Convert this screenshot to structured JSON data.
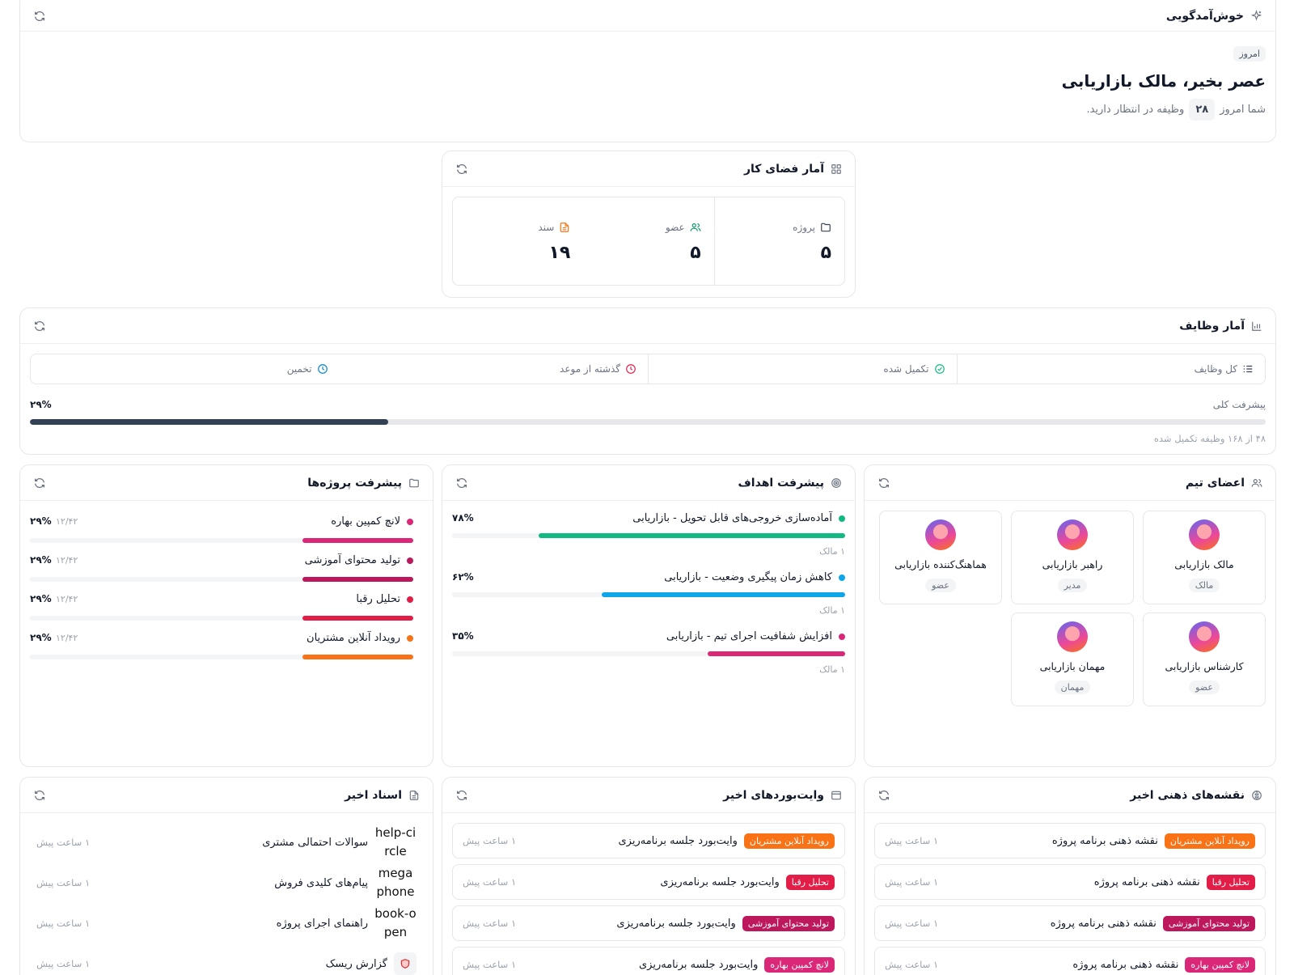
{
  "welcome": {
    "title": "خوش‌آمدگویی",
    "today": "امروز",
    "greeting": "عصر بخیر، مالک بازاریابی",
    "sub_prefix": "شما امروز",
    "task_count": "۲۸",
    "sub_suffix": "وظیفه در انتظار دارید."
  },
  "workspace": {
    "title": "آمار فضای کار",
    "project_label": "پروژه",
    "project_value": "۵",
    "member_label": "عضو",
    "member_value": "۵",
    "doc_label": "سند",
    "doc_value": "۱۹"
  },
  "tasks": {
    "title": "آمار وظایف",
    "total_label": "کل وظایف",
    "completed_label": "تکمیل شده",
    "overdue_label": "گذشته از موعد",
    "estimate_label": "تخمین",
    "progress_label": "پیشرفت کلی",
    "progress_pct_text": "۲۹%",
    "progress_value": 0.29,
    "progress_caption": "۴۸ از ۱۶۸ وظیفه تکمیل شده"
  },
  "projects": {
    "title": "پیشرفت پروژه‌ها",
    "items": [
      {
        "name": "لانچ کمپین بهاره",
        "date": "۱۲/۴۲",
        "pct": "۲۹%",
        "value": 0.29,
        "color": "#db2777"
      },
      {
        "name": "تولید محتوای آموزشی",
        "date": "۱۲/۴۲",
        "pct": "۲۹%",
        "value": 0.29,
        "color": "#be185d"
      },
      {
        "name": "تحلیل رقبا",
        "date": "۱۲/۴۲",
        "pct": "۲۹%",
        "value": 0.29,
        "color": "#e11d48"
      },
      {
        "name": "رویداد آنلاین مشتریان",
        "date": "۱۲/۴۲",
        "pct": "۲۹%",
        "value": 0.29,
        "color": "#f97316"
      }
    ]
  },
  "goals": {
    "title": "پیشرفت اهداف",
    "items": [
      {
        "name": "آماده‌سازی خروجی‌های قابل تحویل - بازاریابی",
        "pct": "۷۸%",
        "value": 0.78,
        "color": "#10b981",
        "owner": "۱ مالک"
      },
      {
        "name": "کاهش زمان پیگیری وضعیت - بازاریابی",
        "pct": "۶۲%",
        "value": 0.62,
        "color": "#0ea5e9",
        "owner": "۱ مالک"
      },
      {
        "name": "افزایش شفافیت اجرای تیم - بازاریابی",
        "pct": "۳۵%",
        "value": 0.35,
        "color": "#db2777",
        "owner": "۱ مالک"
      }
    ]
  },
  "team": {
    "title": "اعضای تیم",
    "members": [
      {
        "name": "مالک بازاریابی",
        "role": "مالک"
      },
      {
        "name": "راهبر بازاریابی",
        "role": "مدیر"
      },
      {
        "name": "هماهنگ‌کننده بازاریابی",
        "role": "عضو"
      },
      {
        "name": "کارشناس بازاریابی",
        "role": "عضو"
      },
      {
        "name": "مهمان بازاریابی",
        "role": "مهمان"
      }
    ]
  },
  "documents": {
    "title": "اسناد اخیر",
    "items": [
      {
        "icon": "help-circle",
        "title": "سوالات احتمالی مشتری",
        "time": "۱ ساعت پیش"
      },
      {
        "icon": "megaphone",
        "title": "پیام‌های کلیدی فروش",
        "time": "۱ ساعت پیش"
      },
      {
        "icon": "book-open",
        "title": "راهنمای اجرای پروژه",
        "time": "۱ ساعت پیش"
      },
      {
        "icon": "shield-icon",
        "title": "گزارش ریسک",
        "time": "۱ ساعت پیش"
      }
    ]
  },
  "whiteboards": {
    "title": "وایت‌بوردهای اخیر",
    "items": [
      {
        "tag": "رویداد آنلاین مشتریان",
        "tag_color": "#f97316",
        "title": "وایت‌بورد جلسه برنامه‌ریزی",
        "time": "۱ ساعت پیش"
      },
      {
        "tag": "تحلیل رقبا",
        "tag_color": "#e11d48",
        "title": "وایت‌بورد جلسه برنامه‌ریزی",
        "time": "۱ ساعت پیش"
      },
      {
        "tag": "تولید محتوای آموزشی",
        "tag_color": "#be185d",
        "title": "وایت‌بورد جلسه برنامه‌ریزی",
        "time": "۱ ساعت پیش"
      },
      {
        "tag": "لانچ کمپین بهاره",
        "tag_color": "#db2777",
        "title": "وایت‌بورد جلسه برنامه‌ریزی",
        "time": "۱ ساعت پیش"
      }
    ]
  },
  "mindmaps": {
    "title": "نقشه‌های ذهنی اخیر",
    "items": [
      {
        "tag": "رویداد آنلاین مشتریان",
        "tag_color": "#f97316",
        "title": "نقشه ذهنی برنامه پروژه",
        "time": "۱ ساعت پیش"
      },
      {
        "tag": "تحلیل رقبا",
        "tag_color": "#e11d48",
        "title": "نقشه ذهنی برنامه پروژه",
        "time": "۱ ساعت پیش"
      },
      {
        "tag": "تولید محتوای آموزشی",
        "tag_color": "#be185d",
        "title": "نقشه ذهنی برنامه پروژه",
        "time": "۱ ساعت پیش"
      },
      {
        "tag": "لانچ کمپین بهاره",
        "tag_color": "#db2777",
        "title": "نقشه ذهنی برنامه پروژه",
        "time": "۱ ساعت پیش"
      }
    ]
  },
  "colors": {
    "progress_dark": "#334155",
    "muted": "#6b7280"
  }
}
